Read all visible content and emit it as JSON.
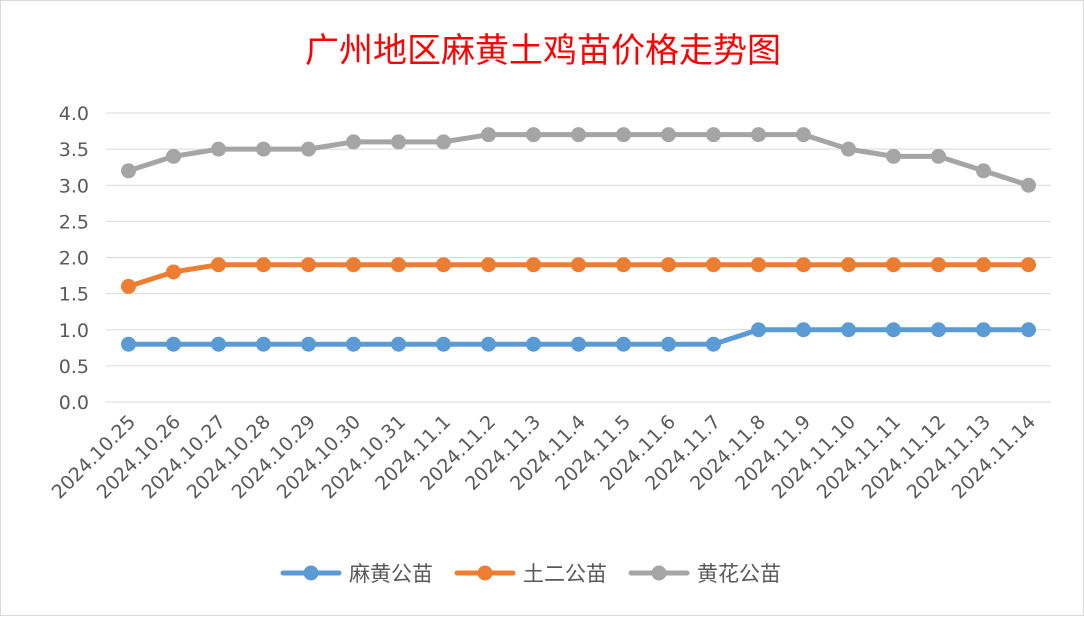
{
  "chart_data": {
    "type": "line",
    "title": "广州地区麻黄土鸡苗价格走势图",
    "categories": [
      "2024.10.25",
      "2024.10.26",
      "2024.10.27",
      "2024.10.28",
      "2024.10.29",
      "2024.10.30",
      "2024.10.31",
      "2024.11.1",
      "2024.11.2",
      "2024.11.3",
      "2024.11.4",
      "2024.11.5",
      "2024.11.6",
      "2024.11.7",
      "2024.11.8",
      "2024.11.9",
      "2024.11.10",
      "2024.11.11",
      "2024.11.12",
      "2024.11.13",
      "2024.11.14"
    ],
    "yticks": [
      "0.0",
      "0.5",
      "1.0",
      "1.5",
      "2.0",
      "2.5",
      "3.0",
      "3.5",
      "4.0"
    ],
    "ylim": [
      0,
      4.0
    ],
    "grid": true,
    "legend_position": "bottom",
    "series": [
      {
        "name": "麻黄公苗",
        "color": "#5b9bd5",
        "values": [
          0.8,
          0.8,
          0.8,
          0.8,
          0.8,
          0.8,
          0.8,
          0.8,
          0.8,
          0.8,
          0.8,
          0.8,
          0.8,
          0.8,
          1.0,
          1.0,
          1.0,
          1.0,
          1.0,
          1.0,
          1.0
        ]
      },
      {
        "name": "土二公苗",
        "color": "#ed7d31",
        "values": [
          1.6,
          1.8,
          1.9,
          1.9,
          1.9,
          1.9,
          1.9,
          1.9,
          1.9,
          1.9,
          1.9,
          1.9,
          1.9,
          1.9,
          1.9,
          1.9,
          1.9,
          1.9,
          1.9,
          1.9,
          1.9
        ]
      },
      {
        "name": "黄花公苗",
        "color": "#a5a5a5",
        "values": [
          3.2,
          3.4,
          3.5,
          3.5,
          3.5,
          3.6,
          3.6,
          3.6,
          3.7,
          3.7,
          3.7,
          3.7,
          3.7,
          3.7,
          3.7,
          3.7,
          3.5,
          3.4,
          3.4,
          3.2,
          3.0
        ]
      }
    ]
  }
}
